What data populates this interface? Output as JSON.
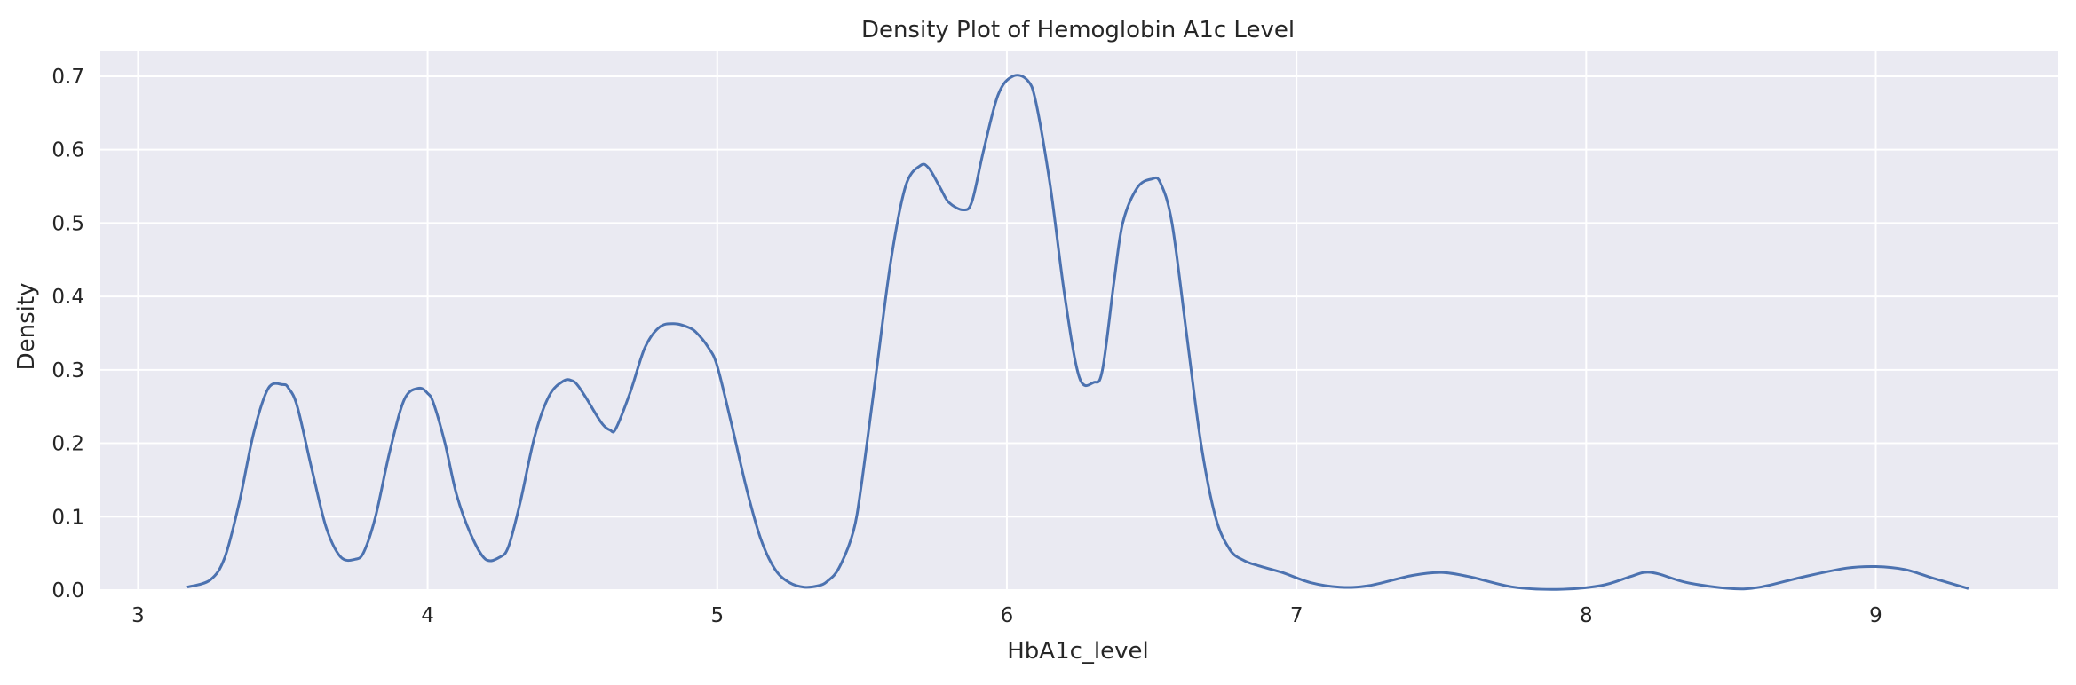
{
  "chart_data": {
    "type": "line",
    "title": "Density Plot of Hemoglobin A1c Level",
    "xlabel": "HbA1c_level",
    "ylabel": "Density",
    "xlim": [
      2.87,
      9.63
    ],
    "ylim": [
      0,
      0.735
    ],
    "grid": true,
    "background": "#eaeaf2",
    "line_color": "#4c72b0",
    "x_ticks": [
      3,
      4,
      5,
      6,
      7,
      8,
      9
    ],
    "x_tick_labels": [
      "3",
      "4",
      "5",
      "6",
      "7",
      "8",
      "9"
    ],
    "y_ticks": [
      0.0,
      0.1,
      0.2,
      0.3,
      0.4,
      0.5,
      0.6,
      0.7
    ],
    "y_tick_labels": [
      "0.0",
      "0.1",
      "0.2",
      "0.3",
      "0.4",
      "0.5",
      "0.6",
      "0.7"
    ],
    "series": [
      {
        "x": [
          3.17,
          3.25,
          3.3,
          3.35,
          3.4,
          3.45,
          3.5,
          3.52,
          3.55,
          3.6,
          3.65,
          3.7,
          3.75,
          3.78,
          3.82,
          3.87,
          3.92,
          3.97,
          4.0,
          4.02,
          4.06,
          4.1,
          4.15,
          4.2,
          4.25,
          4.28,
          4.32,
          4.37,
          4.42,
          4.47,
          4.5,
          4.52,
          4.55,
          4.6,
          4.63,
          4.65,
          4.7,
          4.75,
          4.8,
          4.85,
          4.9,
          4.93,
          4.97,
          5.0,
          5.05,
          5.1,
          5.15,
          5.2,
          5.25,
          5.3,
          5.35,
          5.38,
          5.42,
          5.47,
          5.5,
          5.55,
          5.6,
          5.65,
          5.7,
          5.73,
          5.77,
          5.8,
          5.85,
          5.88,
          5.92,
          5.97,
          6.02,
          6.07,
          6.1,
          6.15,
          6.2,
          6.25,
          6.3,
          6.33,
          6.37,
          6.4,
          6.45,
          6.5,
          6.53,
          6.57,
          6.62,
          6.67,
          6.72,
          6.77,
          6.82,
          6.87,
          6.95,
          7.05,
          7.15,
          7.25,
          7.4,
          7.5,
          7.6,
          7.75,
          7.9,
          8.05,
          8.15,
          8.2,
          8.25,
          8.35,
          8.5,
          8.6,
          8.75,
          8.9,
          9.0,
          9.1,
          9.2,
          9.32
        ],
        "y": [
          0.004,
          0.014,
          0.045,
          0.12,
          0.215,
          0.275,
          0.28,
          0.275,
          0.25,
          0.165,
          0.085,
          0.045,
          0.042,
          0.052,
          0.1,
          0.19,
          0.26,
          0.275,
          0.268,
          0.255,
          0.2,
          0.13,
          0.075,
          0.042,
          0.045,
          0.06,
          0.12,
          0.21,
          0.265,
          0.285,
          0.285,
          0.278,
          0.26,
          0.228,
          0.218,
          0.22,
          0.27,
          0.33,
          0.358,
          0.363,
          0.358,
          0.35,
          0.33,
          0.305,
          0.225,
          0.14,
          0.07,
          0.028,
          0.01,
          0.004,
          0.006,
          0.012,
          0.03,
          0.08,
          0.15,
          0.3,
          0.45,
          0.55,
          0.578,
          0.575,
          0.548,
          0.528,
          0.518,
          0.53,
          0.6,
          0.675,
          0.7,
          0.695,
          0.665,
          0.55,
          0.4,
          0.29,
          0.283,
          0.3,
          0.42,
          0.5,
          0.548,
          0.56,
          0.555,
          0.5,
          0.35,
          0.2,
          0.1,
          0.055,
          0.04,
          0.033,
          0.024,
          0.01,
          0.004,
          0.006,
          0.02,
          0.024,
          0.018,
          0.004,
          0.001,
          0.006,
          0.018,
          0.024,
          0.022,
          0.01,
          0.002,
          0.004,
          0.018,
          0.03,
          0.032,
          0.028,
          0.016,
          0.002
        ]
      }
    ]
  }
}
